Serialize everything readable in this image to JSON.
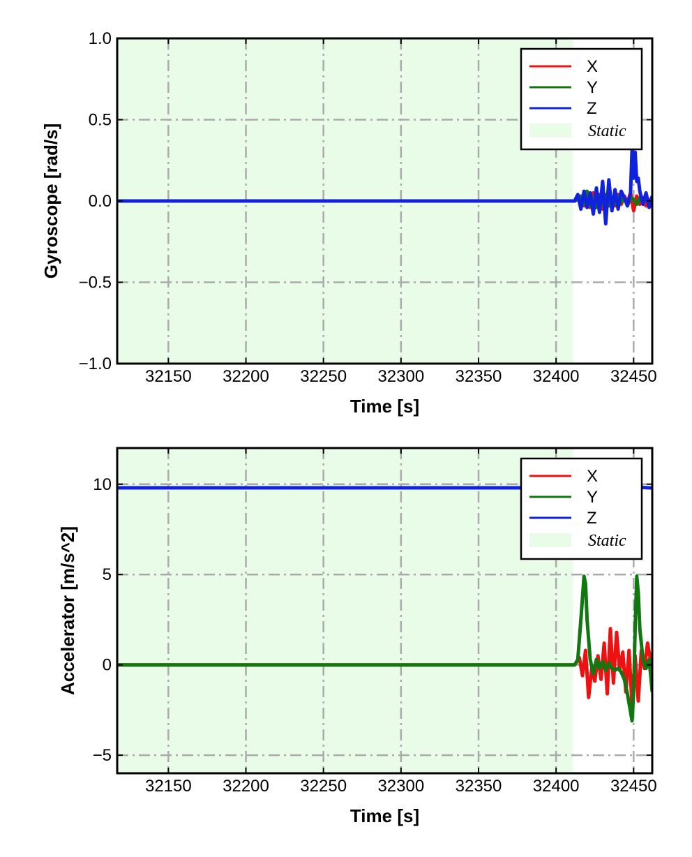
{
  "colors": {
    "X": "#ee1111",
    "Y": "#117711",
    "Z": "#1122dd",
    "static_fill": "#e8fce8",
    "grid": "#aaaaaa",
    "axes": "#000000"
  },
  "chart_data": [
    {
      "type": "line",
      "xlabel": "Time [s]",
      "ylabel": "Gyroscope [rad/s]",
      "xlim": [
        32117,
        32462
      ],
      "ylim": [
        -1.0,
        1.0
      ],
      "xticks": [
        32150,
        32200,
        32250,
        32300,
        32350,
        32400,
        32450
      ],
      "xtick_labels": [
        "32150",
        "32200",
        "32250",
        "32300",
        "32350",
        "32400",
        "32450"
      ],
      "yticks": [
        -1.0,
        -0.5,
        0.0,
        0.5,
        1.0
      ],
      "ytick_labels": [
        "−1.0",
        "−0.5",
        "0.0",
        "0.5",
        "1.0"
      ],
      "grid": true,
      "legend_position": "top-right",
      "static_region": [
        32117,
        32411
      ],
      "legend": [
        "X",
        "Y",
        "Z",
        "Static"
      ],
      "series": [
        {
          "name": "X",
          "x": [
            32117,
            32412,
            32416,
            32418,
            32420,
            32422,
            32424,
            32426,
            32428,
            32430,
            32432,
            32434,
            32436,
            32438,
            32440,
            32442,
            32444,
            32446,
            32448,
            32450,
            32452,
            32454,
            32456,
            32458,
            32460,
            32462
          ],
          "values": [
            0.0,
            0.0,
            0.02,
            -0.03,
            0.02,
            -0.04,
            0.05,
            -0.02,
            0.04,
            -0.05,
            0.03,
            -0.02,
            0.02,
            -0.03,
            0.04,
            -0.02,
            0.03,
            -0.01,
            0.05,
            -0.06,
            0.03,
            -0.02,
            0.02,
            -0.03,
            0.01,
            0.0
          ]
        },
        {
          "name": "Y",
          "x": [
            32117,
            32412,
            32416,
            32418,
            32420,
            32422,
            32424,
            32426,
            32428,
            32430,
            32432,
            32434,
            32436,
            32438,
            32440,
            32442,
            32444,
            32446,
            32448,
            32450,
            32452,
            32454,
            32456,
            32458,
            32460,
            32462
          ],
          "values": [
            0.0,
            0.0,
            0.03,
            -0.02,
            0.06,
            -0.03,
            0.02,
            -0.04,
            0.03,
            -0.02,
            0.04,
            -0.03,
            0.02,
            -0.02,
            0.03,
            -0.01,
            0.02,
            -0.03,
            0.02,
            0.01,
            -0.02,
            0.02,
            -0.01,
            0.02,
            -0.01,
            0.0
          ]
        },
        {
          "name": "Z",
          "x": [
            32117,
            32412,
            32414,
            32416,
            32418,
            32420,
            32422,
            32424,
            32426,
            32428,
            32430,
            32432,
            32434,
            32436,
            32438,
            32440,
            32442,
            32444,
            32446,
            32448,
            32449,
            32450,
            32451,
            32452,
            32453,
            32454,
            32456,
            32458,
            32460,
            32462
          ],
          "values": [
            0.0,
            0.0,
            0.04,
            -0.05,
            0.06,
            -0.04,
            0.05,
            -0.08,
            0.08,
            -0.07,
            0.12,
            -0.14,
            0.13,
            -0.06,
            0.07,
            -0.05,
            0.06,
            0.02,
            -0.03,
            0.05,
            0.32,
            0.14,
            0.3,
            0.12,
            0.14,
            0.06,
            -0.02,
            0.05,
            -0.04,
            0.03
          ]
        }
      ]
    },
    {
      "type": "line",
      "xlabel": "Time [s]",
      "ylabel": "Accelerator [m/s^2]",
      "xlim": [
        32117,
        32462
      ],
      "ylim": [
        -6,
        12
      ],
      "xticks": [
        32150,
        32200,
        32250,
        32300,
        32350,
        32400,
        32450
      ],
      "xtick_labels": [
        "32150",
        "32200",
        "32250",
        "32300",
        "32350",
        "32400",
        "32450"
      ],
      "yticks": [
        -5,
        0,
        5,
        10
      ],
      "ytick_labels": [
        "−5",
        "0",
        "5",
        "10"
      ],
      "grid": true,
      "legend_position": "top-right",
      "static_region": [
        32117,
        32411
      ],
      "legend": [
        "X",
        "Y",
        "Z",
        "Static"
      ],
      "series": [
        {
          "name": "X",
          "x": [
            32117,
            32412,
            32415,
            32417,
            32419,
            32421,
            32423,
            32425,
            32427,
            32429,
            32431,
            32433,
            32435,
            32437,
            32439,
            32441,
            32443,
            32445,
            32447,
            32449,
            32451,
            32453,
            32455,
            32457,
            32459,
            32461,
            32462
          ],
          "values": [
            0.0,
            0.0,
            0.4,
            -0.6,
            0.8,
            -1.8,
            -0.2,
            -0.9,
            0.5,
            -0.8,
            1.2,
            -1.6,
            2.0,
            -1.0,
            1.8,
            -0.3,
            0.7,
            -1.5,
            0.8,
            -2.2,
            0.5,
            -2.0,
            0.8,
            -0.2,
            1.2,
            0.2,
            0.5
          ]
        },
        {
          "name": "Y",
          "x": [
            32117,
            32412,
            32414,
            32416,
            32418,
            32419,
            32420,
            32422,
            32424,
            32426,
            32428,
            32430,
            32432,
            32434,
            32436,
            32438,
            32440,
            32442,
            32444,
            32446,
            32448,
            32449,
            32450,
            32451,
            32452,
            32453,
            32454,
            32456,
            32458,
            32460,
            32462
          ],
          "values": [
            0.0,
            0.0,
            0.3,
            2.5,
            4.9,
            4.5,
            2.5,
            0.3,
            -0.5,
            0.3,
            -0.2,
            0.2,
            -0.3,
            0.1,
            -0.2,
            -0.3,
            -0.2,
            -0.4,
            -0.8,
            -1.6,
            -2.6,
            -3.1,
            -1.5,
            2.0,
            4.9,
            4.0,
            2.0,
            0.3,
            -0.2,
            0.3,
            -1.5
          ]
        },
        {
          "name": "Z",
          "x": [
            32117,
            32412,
            32418,
            32425,
            32430,
            32436,
            32442,
            32448,
            32454,
            32460,
            32462
          ],
          "values": [
            9.8,
            9.8,
            9.83,
            9.79,
            9.82,
            9.78,
            9.81,
            9.79,
            9.83,
            9.8,
            9.8
          ]
        }
      ]
    }
  ]
}
